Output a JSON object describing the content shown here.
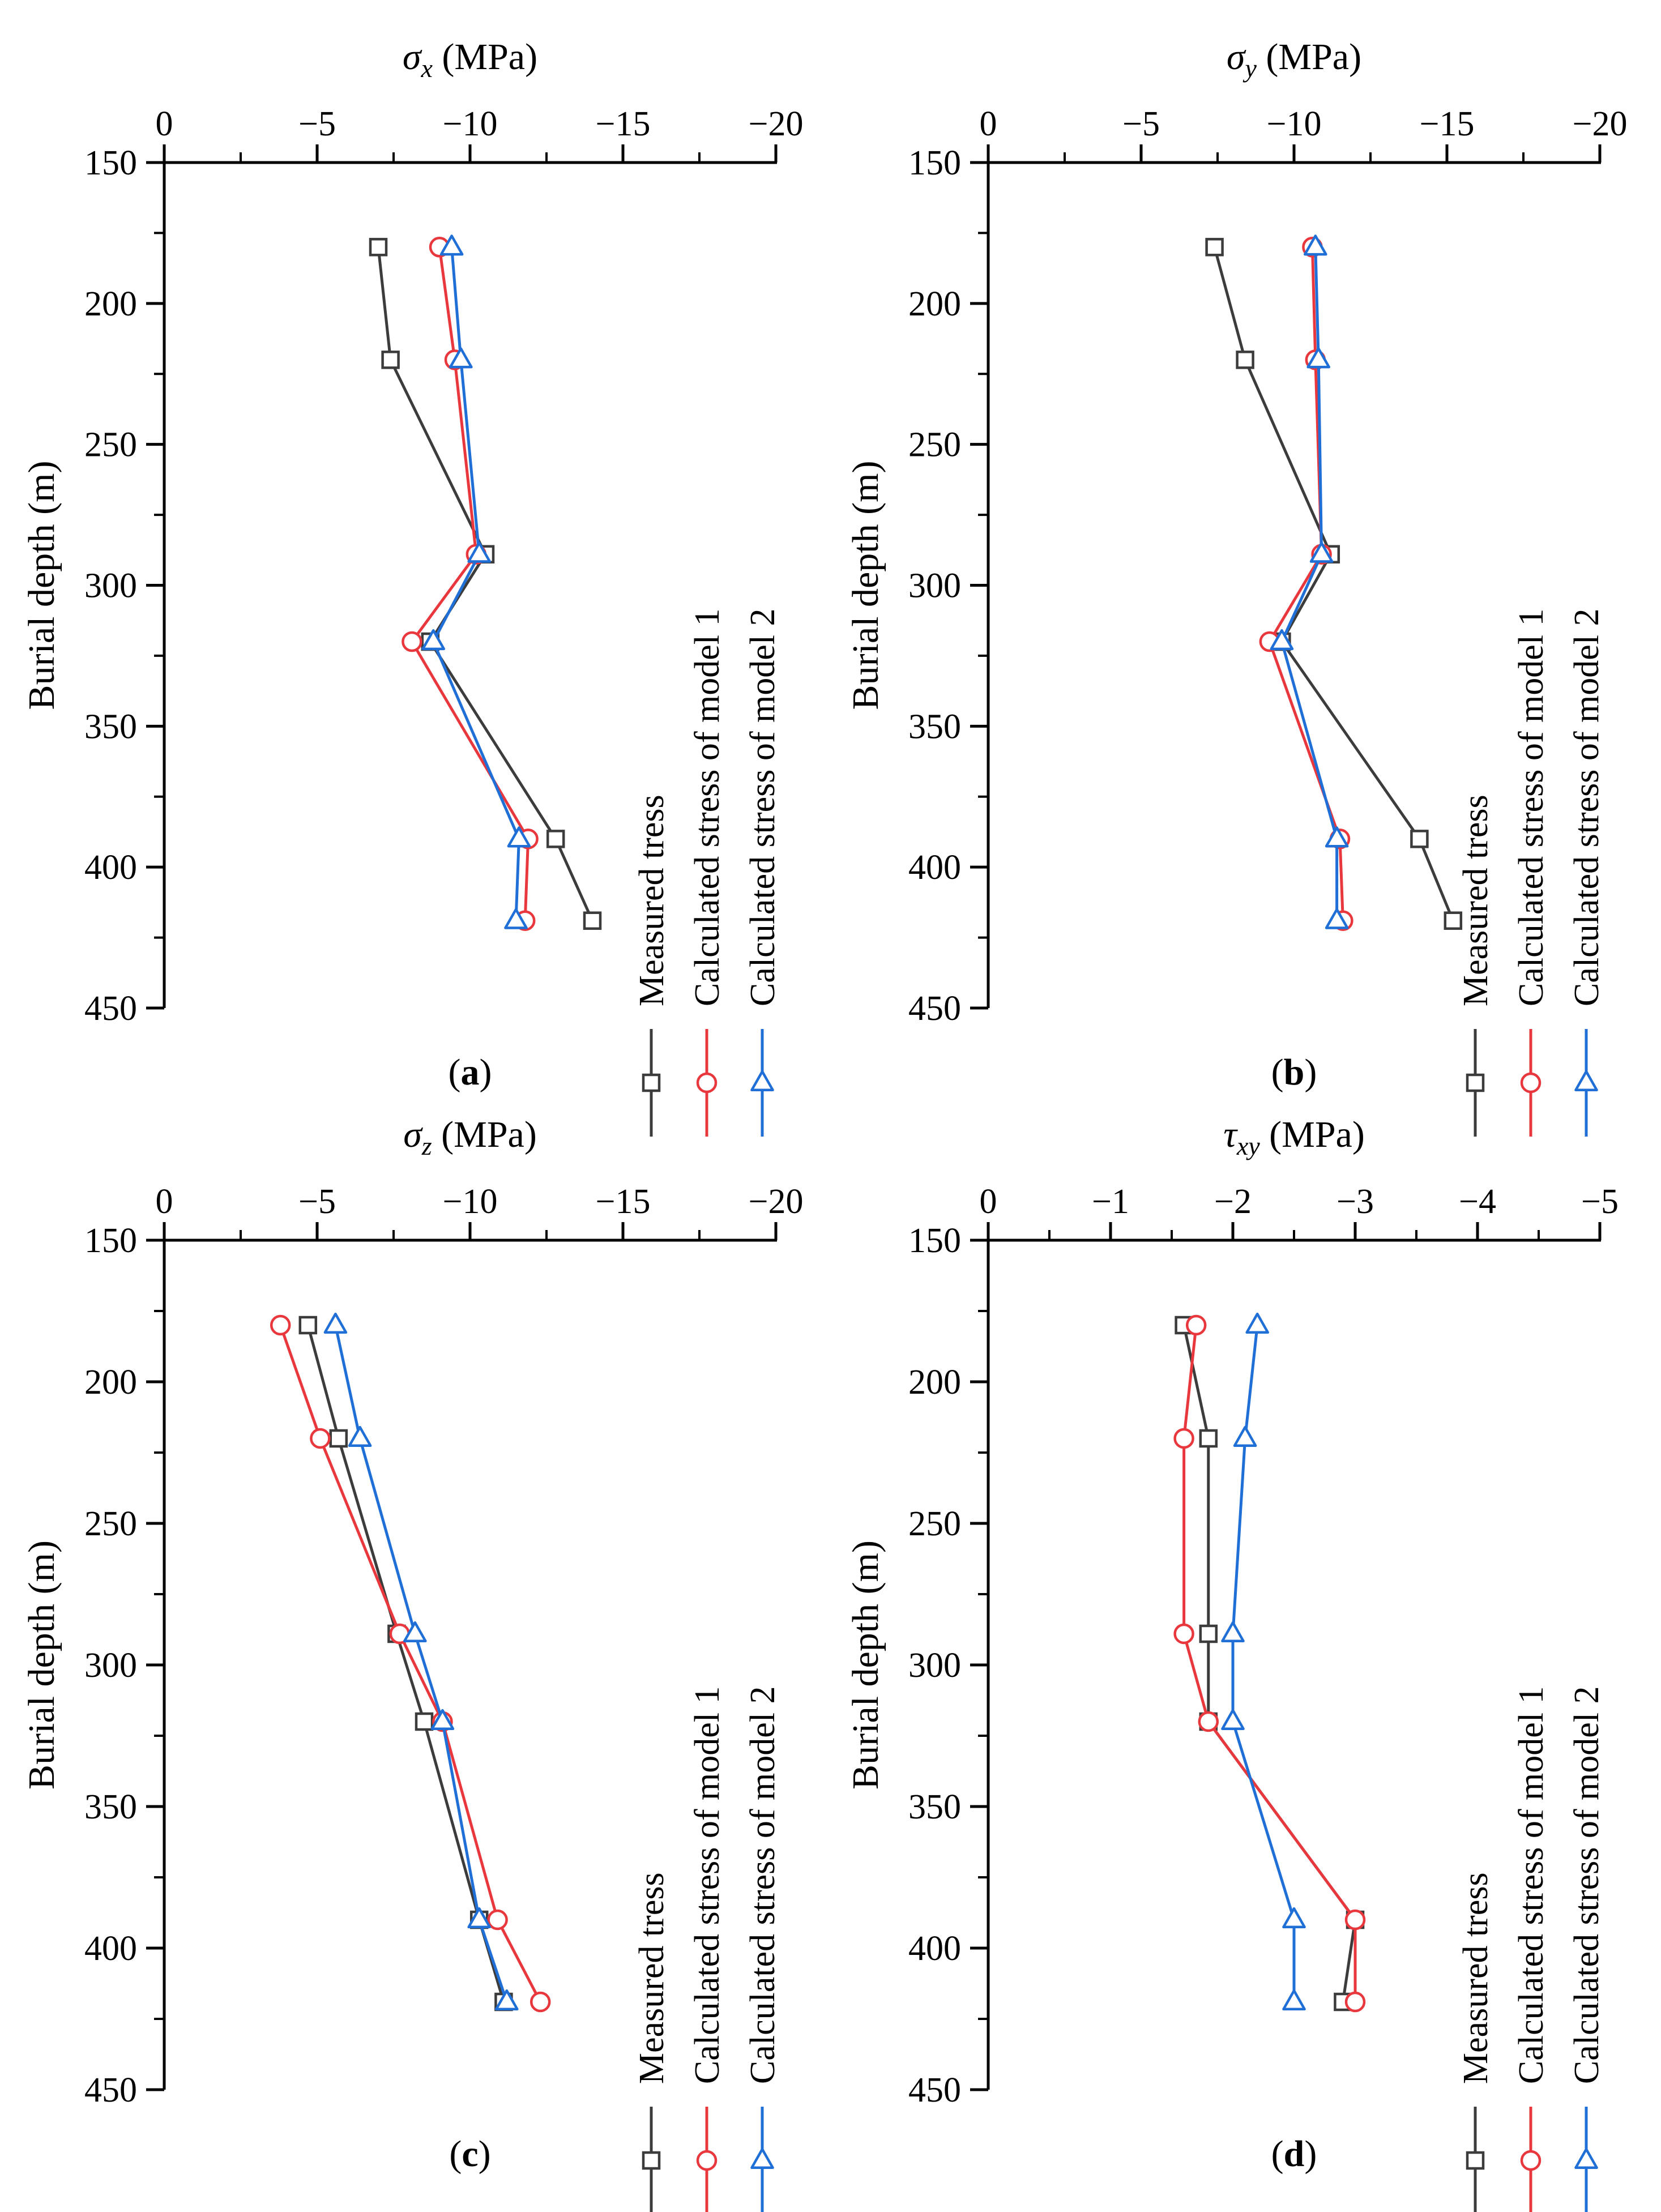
{
  "figure": {
    "legend_entries": [
      "Measured tress",
      "Calculated stress of model 1",
      "Calculated stress of model 2"
    ]
  },
  "chart_data": [
    {
      "type": "line",
      "panel_label": "a",
      "title": "",
      "xlabel": "σx (MPa)",
      "xlabel_symbol": "σ",
      "xlabel_subscript": "x",
      "xlabel_unit": " (MPa)",
      "ylabel": "Burial depth (m)",
      "xlim": [
        0,
        -20
      ],
      "ylim": [
        150,
        450
      ],
      "y_reversed": true,
      "x_ticks": [
        0,
        -5,
        -10,
        -15,
        -20
      ],
      "x_tick_labels": [
        "0",
        "−5",
        "−10",
        "−15",
        "−20"
      ],
      "y_ticks": [
        150,
        200,
        250,
        300,
        350,
        400,
        450
      ],
      "y_tick_labels": [
        "150",
        "200",
        "250",
        "300",
        "350",
        "400",
        "450"
      ],
      "grid": false,
      "legend_position": "right, rotated vertical",
      "series": [
        {
          "name": "Measured tress",
          "marker": "square",
          "color": "#3c3c3c",
          "depths": [
            180,
            220,
            289,
            320,
            390,
            419
          ],
          "values": [
            -7.0,
            -7.4,
            -10.5,
            -8.7,
            -12.8,
            -14.0
          ]
        },
        {
          "name": "Calculated stress of model 1",
          "marker": "circle",
          "color": "#e8383d",
          "depths": [
            180,
            220,
            289,
            320,
            390,
            419
          ],
          "values": [
            -9.0,
            -9.5,
            -10.2,
            -8.1,
            -11.9,
            -11.8
          ]
        },
        {
          "name": "Calculated stress of model 2",
          "marker": "triangle",
          "color": "#1f6fd6",
          "depths": [
            180,
            220,
            289,
            320,
            390,
            419
          ],
          "values": [
            -9.4,
            -9.7,
            -10.3,
            -8.8,
            -11.6,
            -11.5
          ]
        }
      ]
    },
    {
      "type": "line",
      "panel_label": "b",
      "title": "",
      "xlabel": "σy (MPa)",
      "xlabel_symbol": "σ",
      "xlabel_subscript": "y",
      "xlabel_unit": " (MPa)",
      "ylabel": "Burial depth (m)",
      "xlim": [
        0,
        -20
      ],
      "ylim": [
        150,
        450
      ],
      "y_reversed": true,
      "x_ticks": [
        0,
        -5,
        -10,
        -15,
        -20
      ],
      "x_tick_labels": [
        "0",
        "−5",
        "−10",
        "−15",
        "−20"
      ],
      "y_ticks": [
        150,
        200,
        250,
        300,
        350,
        400,
        450
      ],
      "y_tick_labels": [
        "150",
        "200",
        "250",
        "300",
        "350",
        "400",
        "450"
      ],
      "grid": false,
      "legend_position": "right, rotated vertical",
      "series": [
        {
          "name": "Measured tress",
          "marker": "square",
          "color": "#3c3c3c",
          "depths": [
            180,
            220,
            289,
            320,
            390,
            419
          ],
          "values": [
            -7.4,
            -8.4,
            -11.2,
            -9.6,
            -14.1,
            -15.2
          ]
        },
        {
          "name": "Calculated stress of model 1",
          "marker": "circle",
          "color": "#e8383d",
          "depths": [
            180,
            220,
            289,
            320,
            390,
            419
          ],
          "values": [
            -10.6,
            -10.7,
            -10.9,
            -9.2,
            -11.5,
            -11.6
          ]
        },
        {
          "name": "Calculated stress of model 2",
          "marker": "triangle",
          "color": "#1f6fd6",
          "depths": [
            180,
            220,
            289,
            320,
            390,
            419
          ],
          "values": [
            -10.7,
            -10.8,
            -10.9,
            -9.6,
            -11.4,
            -11.4
          ]
        }
      ]
    },
    {
      "type": "line",
      "panel_label": "c",
      "title": "",
      "xlabel": "σz (MPa)",
      "xlabel_symbol": "σ",
      "xlabel_subscript": "z",
      "xlabel_unit": " (MPa)",
      "ylabel": "Burial depth (m)",
      "xlim": [
        0,
        -20
      ],
      "ylim": [
        150,
        450
      ],
      "y_reversed": true,
      "x_ticks": [
        0,
        -5,
        -10,
        -15,
        -20
      ],
      "x_tick_labels": [
        "0",
        "−5",
        "−10",
        "−15",
        "−20"
      ],
      "y_ticks": [
        150,
        200,
        250,
        300,
        350,
        400,
        450
      ],
      "y_tick_labels": [
        "150",
        "200",
        "250",
        "300",
        "350",
        "400",
        "450"
      ],
      "grid": false,
      "legend_position": "right, rotated vertical",
      "series": [
        {
          "name": "Measured tress",
          "marker": "square",
          "color": "#3c3c3c",
          "depths": [
            180,
            220,
            289,
            320,
            390,
            419
          ],
          "values": [
            -4.7,
            -5.7,
            -7.6,
            -8.5,
            -10.3,
            -11.1
          ]
        },
        {
          "name": "Calculated stress of model 1",
          "marker": "circle",
          "color": "#e8383d",
          "depths": [
            180,
            220,
            289,
            320,
            390,
            419
          ],
          "values": [
            -3.8,
            -5.1,
            -7.7,
            -9.1,
            -10.9,
            -12.3
          ]
        },
        {
          "name": "Calculated stress of model 2",
          "marker": "triangle",
          "color": "#1f6fd6",
          "depths": [
            180,
            220,
            289,
            320,
            390,
            419
          ],
          "values": [
            -5.6,
            -6.4,
            -8.2,
            -9.1,
            -10.3,
            -11.2
          ]
        }
      ]
    },
    {
      "type": "line",
      "panel_label": "d",
      "title": "",
      "xlabel": "τxy (MPa)",
      "xlabel_symbol": "τ",
      "xlabel_subscript": "xy",
      "xlabel_unit": " (MPa)",
      "ylabel": "Burial depth (m)",
      "xlim": [
        0,
        -5
      ],
      "ylim": [
        150,
        450
      ],
      "y_reversed": true,
      "x_ticks": [
        0,
        -1,
        -2,
        -3,
        -4,
        -5
      ],
      "x_tick_labels": [
        "0",
        "−1",
        "−2",
        "−3",
        "−4",
        "−5"
      ],
      "y_ticks": [
        150,
        200,
        250,
        300,
        350,
        400,
        450
      ],
      "y_tick_labels": [
        "150",
        "200",
        "250",
        "300",
        "350",
        "400",
        "450"
      ],
      "grid": false,
      "legend_position": "right, rotated vertical",
      "series": [
        {
          "name": "Measured tress",
          "marker": "square",
          "color": "#3c3c3c",
          "depths": [
            180,
            220,
            289,
            320,
            390,
            419
          ],
          "values": [
            -1.6,
            -1.8,
            -1.8,
            -1.8,
            -3.0,
            -2.9
          ]
        },
        {
          "name": "Calculated stress of model 1",
          "marker": "circle",
          "color": "#e8383d",
          "depths": [
            180,
            220,
            289,
            320,
            390,
            419
          ],
          "values": [
            -1.7,
            -1.6,
            -1.6,
            -1.8,
            -3.0,
            -3.0
          ]
        },
        {
          "name": "Calculated stress of model 2",
          "marker": "triangle",
          "color": "#1f6fd6",
          "depths": [
            180,
            220,
            289,
            320,
            390,
            419
          ],
          "values": [
            -2.2,
            -2.1,
            -2.0,
            -2.0,
            -2.5,
            -2.5
          ]
        }
      ]
    }
  ]
}
